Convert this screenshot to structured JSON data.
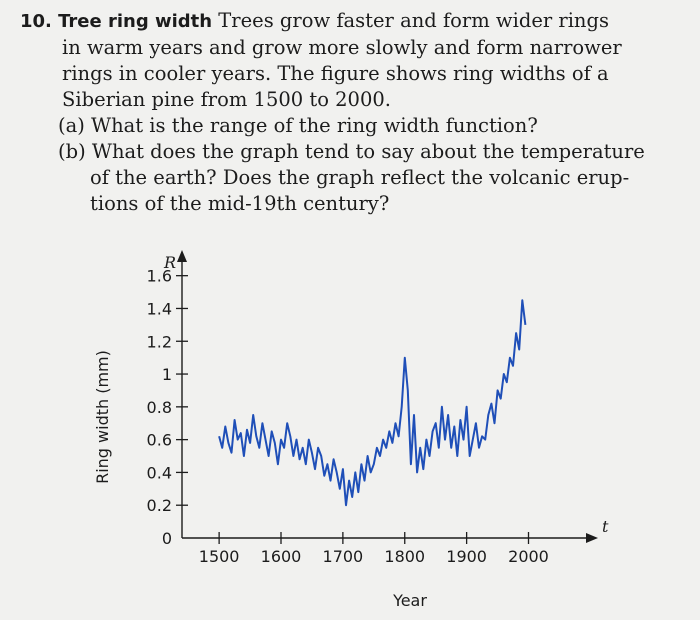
{
  "problem": {
    "number": "10.",
    "title": "Tree ring width",
    "lines": [
      "Trees grow faster and form wider rings",
      "in warm years and grow more slowly and form narrower",
      "rings in cooler years. The figure shows ring widths of a",
      "Siberian pine from 1500 to 2000."
    ],
    "part_a": "(a) What is the range of the ring width function?",
    "part_b_lines": [
      "(b) What does the graph tend to say about the temperature",
      "of the earth? Does the graph reflect the volcanic erup-",
      "tions of the mid-19th century?"
    ]
  },
  "chart_data": {
    "type": "line",
    "y_axis_symbol": "R",
    "x_axis_symbol": "t",
    "ylabel": "Ring width (mm)",
    "xlabel": "Year",
    "xlim": [
      1440,
      2080
    ],
    "ylim": [
      0,
      1.72
    ],
    "x_ticks": [
      1500,
      1600,
      1700,
      1800,
      1900,
      2000
    ],
    "x_tick_labels": [
      "1500",
      "1600",
      "1700",
      "1800",
      "1900",
      "2000"
    ],
    "y_ticks": [
      0,
      0.2,
      0.4,
      0.6,
      0.8,
      1,
      1.2,
      1.4,
      1.6
    ],
    "y_tick_labels": [
      "0",
      "0.2",
      "0.4",
      "0.6",
      "0.8",
      "1",
      "1.2",
      "1.4",
      "1.6"
    ],
    "series": [
      {
        "color": "#1f4fb8",
        "x": [
          1500,
          1505,
          1510,
          1515,
          1520,
          1525,
          1530,
          1535,
          1540,
          1545,
          1550,
          1555,
          1560,
          1565,
          1570,
          1575,
          1580,
          1585,
          1590,
          1595,
          1600,
          1605,
          1610,
          1615,
          1620,
          1625,
          1630,
          1635,
          1640,
          1645,
          1650,
          1655,
          1660,
          1665,
          1670,
          1675,
          1680,
          1685,
          1690,
          1695,
          1700,
          1705,
          1710,
          1715,
          1720,
          1725,
          1730,
          1735,
          1740,
          1745,
          1750,
          1755,
          1760,
          1765,
          1770,
          1775,
          1780,
          1785,
          1790,
          1795,
          1800,
          1805,
          1810,
          1815,
          1820,
          1825,
          1830,
          1835,
          1840,
          1845,
          1850,
          1855,
          1860,
          1865,
          1870,
          1875,
          1880,
          1885,
          1890,
          1895,
          1900,
          1905,
          1910,
          1915,
          1920,
          1925,
          1930,
          1935,
          1940,
          1945,
          1950,
          1955,
          1960,
          1965,
          1970,
          1975,
          1980,
          1985,
          1990,
          1995
        ],
        "values": [
          0.62,
          0.55,
          0.68,
          0.58,
          0.52,
          0.72,
          0.6,
          0.64,
          0.5,
          0.66,
          0.58,
          0.75,
          0.62,
          0.55,
          0.7,
          0.6,
          0.5,
          0.65,
          0.58,
          0.45,
          0.6,
          0.55,
          0.7,
          0.62,
          0.5,
          0.6,
          0.48,
          0.55,
          0.45,
          0.6,
          0.52,
          0.42,
          0.55,
          0.5,
          0.38,
          0.45,
          0.35,
          0.48,
          0.4,
          0.3,
          0.42,
          0.2,
          0.35,
          0.25,
          0.4,
          0.28,
          0.45,
          0.35,
          0.5,
          0.4,
          0.45,
          0.55,
          0.5,
          0.6,
          0.55,
          0.65,
          0.58,
          0.7,
          0.62,
          0.8,
          1.1,
          0.9,
          0.45,
          0.75,
          0.4,
          0.55,
          0.42,
          0.6,
          0.5,
          0.65,
          0.7,
          0.55,
          0.8,
          0.6,
          0.75,
          0.55,
          0.68,
          0.5,
          0.72,
          0.6,
          0.8,
          0.5,
          0.6,
          0.7,
          0.55,
          0.62,
          0.6,
          0.75,
          0.82,
          0.7,
          0.9,
          0.85,
          1.0,
          0.95,
          1.1,
          1.05,
          1.25,
          1.15,
          1.45,
          1.3
        ]
      }
    ]
  }
}
